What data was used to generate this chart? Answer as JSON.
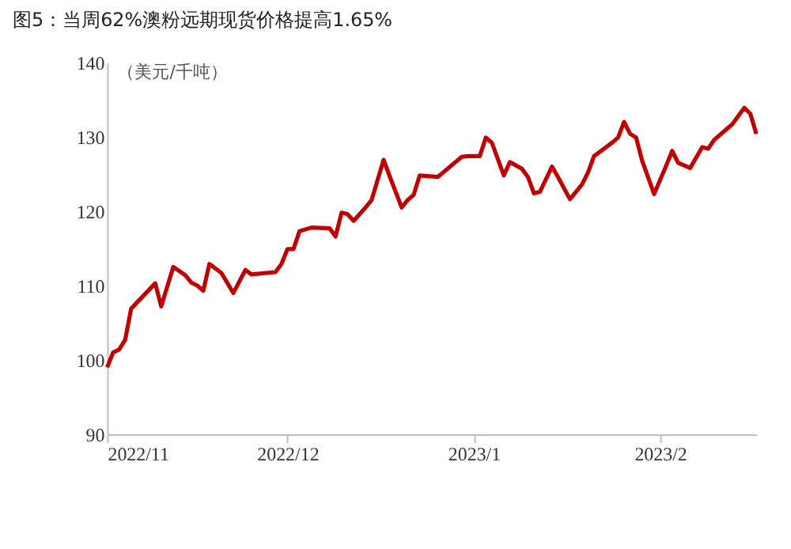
{
  "chart_data": {
    "type": "line",
    "title": "图5：当周62%澳粉远期现货价格提高1.65%",
    "ylabel": "（美元/千吨）",
    "x": [
      "2022-11-01",
      "2022-11-02",
      "2022-11-03",
      "2022-11-04",
      "2022-11-05",
      "2022-11-07",
      "2022-11-09",
      "2022-11-10",
      "2022-11-12",
      "2022-11-14",
      "2022-11-15",
      "2022-11-16",
      "2022-11-17",
      "2022-11-18",
      "2022-11-20",
      "2022-11-22",
      "2022-11-24",
      "2022-11-25",
      "2022-11-29",
      "2022-11-30",
      "2022-12-01",
      "2022-12-02",
      "2022-12-03",
      "2022-12-05",
      "2022-12-08",
      "2022-12-09",
      "2022-12-10",
      "2022-12-11",
      "2022-12-12",
      "2022-12-14",
      "2022-12-15",
      "2022-12-17",
      "2022-12-18",
      "2022-12-20",
      "2022-12-21",
      "2022-12-22",
      "2022-12-23",
      "2022-12-26",
      "2022-12-30",
      "2022-12-31",
      "2023-01-02",
      "2023-01-03",
      "2023-01-04",
      "2023-01-06",
      "2023-01-07",
      "2023-01-09",
      "2023-01-10",
      "2023-01-11",
      "2023-01-12",
      "2023-01-14",
      "2023-01-15",
      "2023-01-17",
      "2023-01-19",
      "2023-01-20",
      "2023-01-21",
      "2023-01-24",
      "2023-01-25",
      "2023-01-26",
      "2023-01-27",
      "2023-01-28",
      "2023-01-29",
      "2023-01-31",
      "2023-02-02",
      "2023-02-03",
      "2023-02-04",
      "2023-02-06",
      "2023-02-08",
      "2023-02-09",
      "2023-02-10",
      "2023-02-13",
      "2023-02-15",
      "2023-02-16",
      "2023-02-17"
    ],
    "series": [
      {
        "color": "#c00000",
        "values": [
          99.0,
          101.0,
          101.4,
          102.7,
          106.9,
          108.6,
          110.3,
          107.2,
          112.5,
          111.4,
          110.4,
          110.0,
          109.3,
          112.9,
          111.7,
          109.0,
          112.1,
          111.5,
          111.8,
          112.9,
          114.9,
          114.9,
          117.3,
          117.8,
          117.7,
          116.6,
          119.8,
          119.6,
          118.7,
          120.5,
          121.5,
          126.9,
          124.7,
          120.5,
          121.5,
          122.2,
          124.8,
          124.6,
          127.3,
          127.4,
          127.4,
          129.9,
          129.2,
          124.8,
          126.6,
          125.7,
          124.6,
          122.4,
          122.6,
          126.0,
          124.6,
          121.6,
          123.6,
          125.2,
          127.4,
          129.2,
          129.9,
          132.0,
          130.4,
          129.9,
          126.8,
          122.3,
          126.1,
          128.1,
          126.5,
          125.8,
          128.6,
          128.4,
          129.6,
          131.7,
          133.9,
          133.1,
          130.4
        ]
      }
    ],
    "xlim": [
      "2022-11-01",
      "2023-02-17"
    ],
    "xticks": [
      {
        "value": "2022-11-01",
        "label": "2022/11"
      },
      {
        "value": "2022-12-01",
        "label": "2022/12"
      },
      {
        "value": "2023-01-01",
        "label": "2023/1"
      },
      {
        "value": "2023-02-01",
        "label": "2023/2"
      }
    ],
    "ylim": [
      90,
      140
    ],
    "yticks": [
      90,
      100,
      110,
      120,
      130,
      140
    ],
    "grid": false,
    "marker": "none",
    "line_style": "solid"
  }
}
